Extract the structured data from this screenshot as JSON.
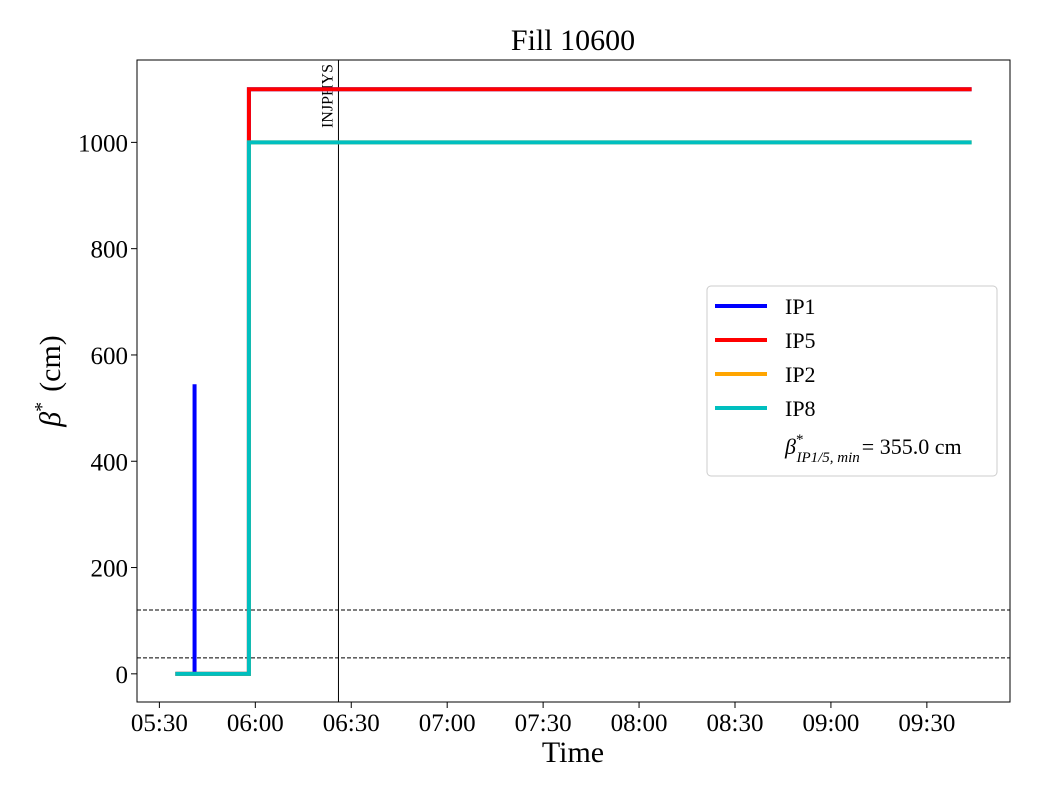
{
  "chart_data": {
    "type": "line",
    "title": "Fill 10600",
    "xlabel": "Time",
    "ylabel": {
      "base": "β",
      "sup": "*",
      "unit": "(cm)"
    },
    "xlim": [
      "05:23",
      "09:56"
    ],
    "xticks": [
      "05:30",
      "06:00",
      "06:30",
      "07:00",
      "07:30",
      "08:00",
      "08:30",
      "09:00",
      "09:30"
    ],
    "ylim": [
      -53,
      1155
    ],
    "yticks": [
      0,
      200,
      400,
      600,
      800,
      1000
    ],
    "series": [
      {
        "name": "IP1",
        "color": "#0000ff",
        "x": [
          "05:35",
          "05:41",
          "05:41",
          "05:41",
          "05:58",
          "05:58",
          "09:44"
        ],
        "values": [
          0,
          0,
          545,
          0,
          0,
          1100,
          1100
        ]
      },
      {
        "name": "IP5",
        "color": "#ff0000",
        "x": [
          "05:35",
          "05:58",
          "05:58",
          "09:44"
        ],
        "values": [
          0,
          0,
          1100,
          1100
        ]
      },
      {
        "name": "IP2",
        "color": "#ffa500",
        "x": [
          "05:35",
          "05:58",
          "05:58",
          "09:44"
        ],
        "values": [
          0,
          0,
          1000,
          1000
        ]
      },
      {
        "name": "IP8",
        "color": "#00bfbf",
        "x": [
          "05:35",
          "05:58",
          "05:58",
          "09:44"
        ],
        "values": [
          0,
          0,
          1000,
          1000
        ]
      }
    ],
    "hlines": [
      {
        "y": 120
      },
      {
        "y": 30
      }
    ],
    "vlines": [
      {
        "x": "06:26",
        "label": "INJPHYS"
      }
    ],
    "legend_note": {
      "base": "β",
      "sup": "*",
      "sub": "IP1/5, min",
      "text": "= 355.0 cm"
    },
    "legend": "center right"
  }
}
